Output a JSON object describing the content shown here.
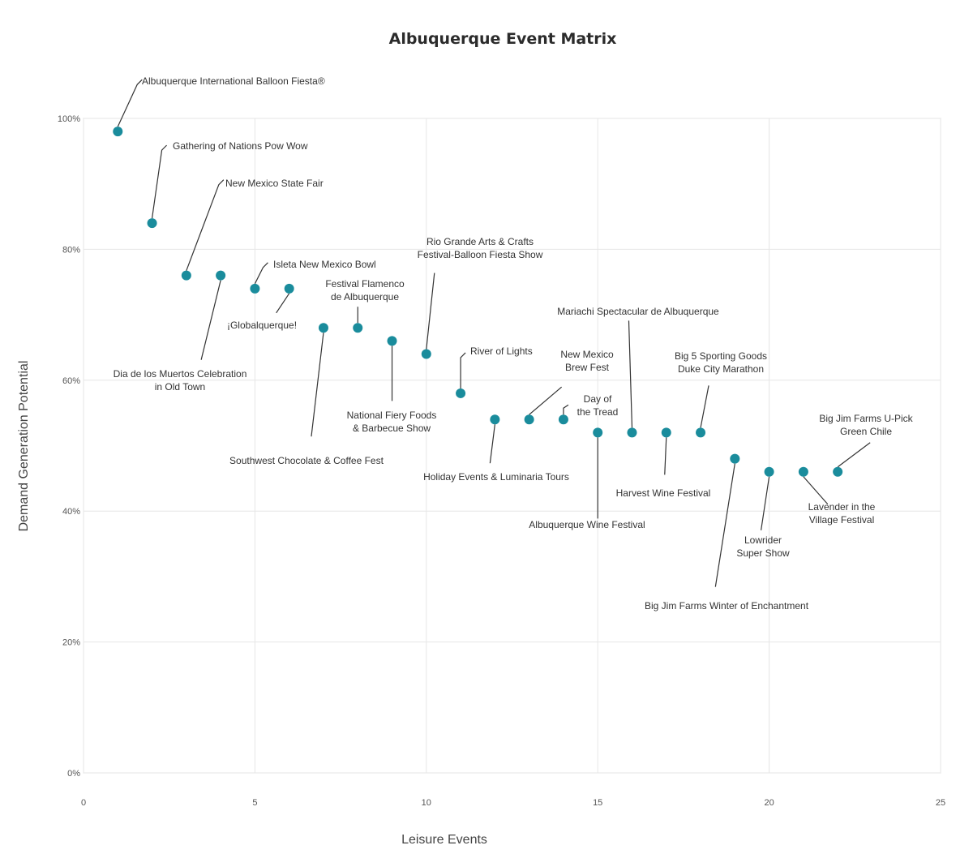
{
  "chart_data": {
    "type": "scatter",
    "title": "Albuquerque Event Matrix",
    "xlabel": "Leisure Events",
    "ylabel": "Demand Generation Potential",
    "xlim": [
      0,
      25
    ],
    "ylim": [
      0,
      100
    ],
    "x_ticks": [
      "0",
      "5",
      "10",
      "15",
      "20",
      "25"
    ],
    "y_ticks": [
      "0%",
      "20%",
      "40%",
      "60%",
      "80%",
      "100%"
    ],
    "grid": true,
    "point_color": "#1a8c9c",
    "points": [
      {
        "x": 1,
        "y": 98,
        "label": [
          "Albuquerque International Balloon Fiesta®"
        ]
      },
      {
        "x": 2,
        "y": 84,
        "label": [
          "Gathering of Nations Pow Wow"
        ]
      },
      {
        "x": 3,
        "y": 76,
        "label": [
          "New Mexico State Fair"
        ]
      },
      {
        "x": 4,
        "y": 76,
        "label": [
          "Dia de los Muertos Celebration",
          "in Old Town"
        ]
      },
      {
        "x": 5,
        "y": 74,
        "label": [
          "Isleta New Mexico Bowl"
        ]
      },
      {
        "x": 6,
        "y": 74,
        "label": [
          "¡Globalquerque!"
        ]
      },
      {
        "x": 7,
        "y": 68,
        "label": [
          "Southwest Chocolate & Coffee Fest"
        ]
      },
      {
        "x": 8,
        "y": 68,
        "label": [
          "Festival Flamenco",
          "de Albuquerque"
        ]
      },
      {
        "x": 9,
        "y": 66,
        "label": [
          "National Fiery Foods",
          "& Barbecue Show"
        ]
      },
      {
        "x": 10,
        "y": 64,
        "label": [
          "Rio Grande Arts & Crafts",
          "Festival-Balloon Fiesta Show"
        ]
      },
      {
        "x": 11,
        "y": 58,
        "label": [
          "River of Lights"
        ]
      },
      {
        "x": 12,
        "y": 54,
        "label": [
          "Holiday Events & Luminaria Tours"
        ]
      },
      {
        "x": 13,
        "y": 54,
        "label": [
          "New Mexico",
          "Brew Fest"
        ]
      },
      {
        "x": 14,
        "y": 54,
        "label": [
          "Day of",
          "the Tread"
        ]
      },
      {
        "x": 15,
        "y": 52,
        "label": [
          "Albuquerque Wine Festival"
        ]
      },
      {
        "x": 16,
        "y": 52,
        "label": [
          "Mariachi Spectacular de Albuquerque"
        ]
      },
      {
        "x": 17,
        "y": 52,
        "label": [
          "Harvest Wine Festival"
        ]
      },
      {
        "x": 18,
        "y": 52,
        "label": [
          "Big 5 Sporting Goods",
          "Duke City Marathon"
        ]
      },
      {
        "x": 19,
        "y": 48,
        "label": [
          "Big Jim Farms Winter of Enchantment"
        ]
      },
      {
        "x": 20,
        "y": 46,
        "label": [
          "Lowrider",
          "Super Show"
        ]
      },
      {
        "x": 21,
        "y": 46,
        "label": [
          "Lavender in the",
          "Village Festival"
        ]
      },
      {
        "x": 22,
        "y": 46,
        "label": [
          "Big Jim Farms U-Pick",
          "Green Chile"
        ]
      }
    ]
  }
}
